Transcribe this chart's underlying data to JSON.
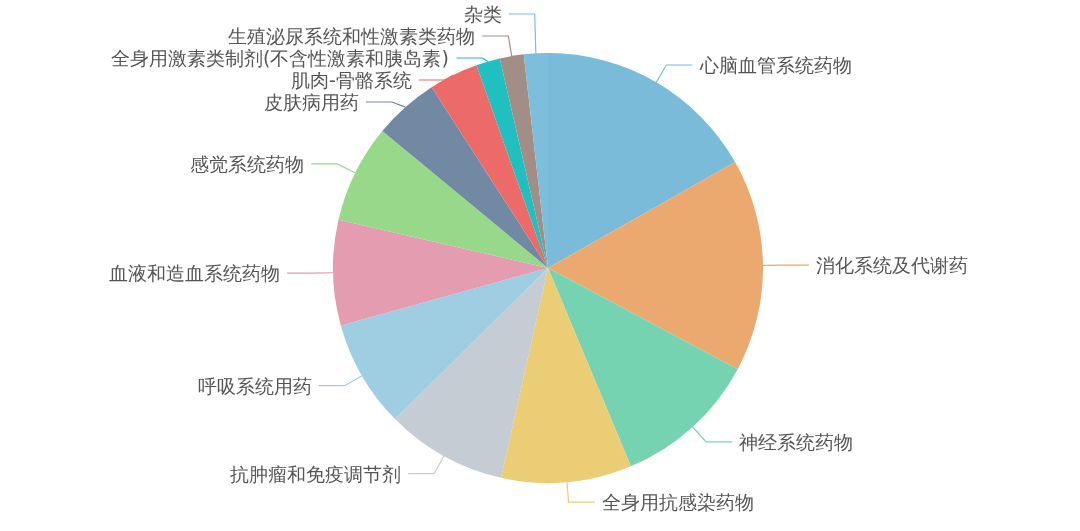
{
  "chart_data": {
    "type": "pie",
    "categories": [
      "心脑血管系统药物",
      "消化系统及代谢药",
      "神经系统药物",
      "全身用抗感染药物",
      "抗肿瘤和免疫调节剂",
      "呼吸系统用药",
      "血液和造血系统药物",
      "感觉系统药物",
      "皮肤病用药",
      "肌肉-骨骼系统",
      "全身用激素类制剂(不含性激素和胰岛素)",
      "生殖泌尿系统和性激素类药物",
      "杂类"
    ],
    "values": [
      16.8,
      16.0,
      10.9,
      9.8,
      9.1,
      8.1,
      7.9,
      7.4,
      4.9,
      3.7,
      1.8,
      1.8,
      1.8
    ],
    "colors": [
      "#79bbd8",
      "#eba96f",
      "#75d3b2",
      "#ebcd75",
      "#c5ccd3",
      "#9fcde1",
      "#e49cb1",
      "#97d88a",
      "#7289a4",
      "#ec6a68",
      "#21c0c0",
      "#a38d87",
      "#7cbedb"
    ]
  }
}
